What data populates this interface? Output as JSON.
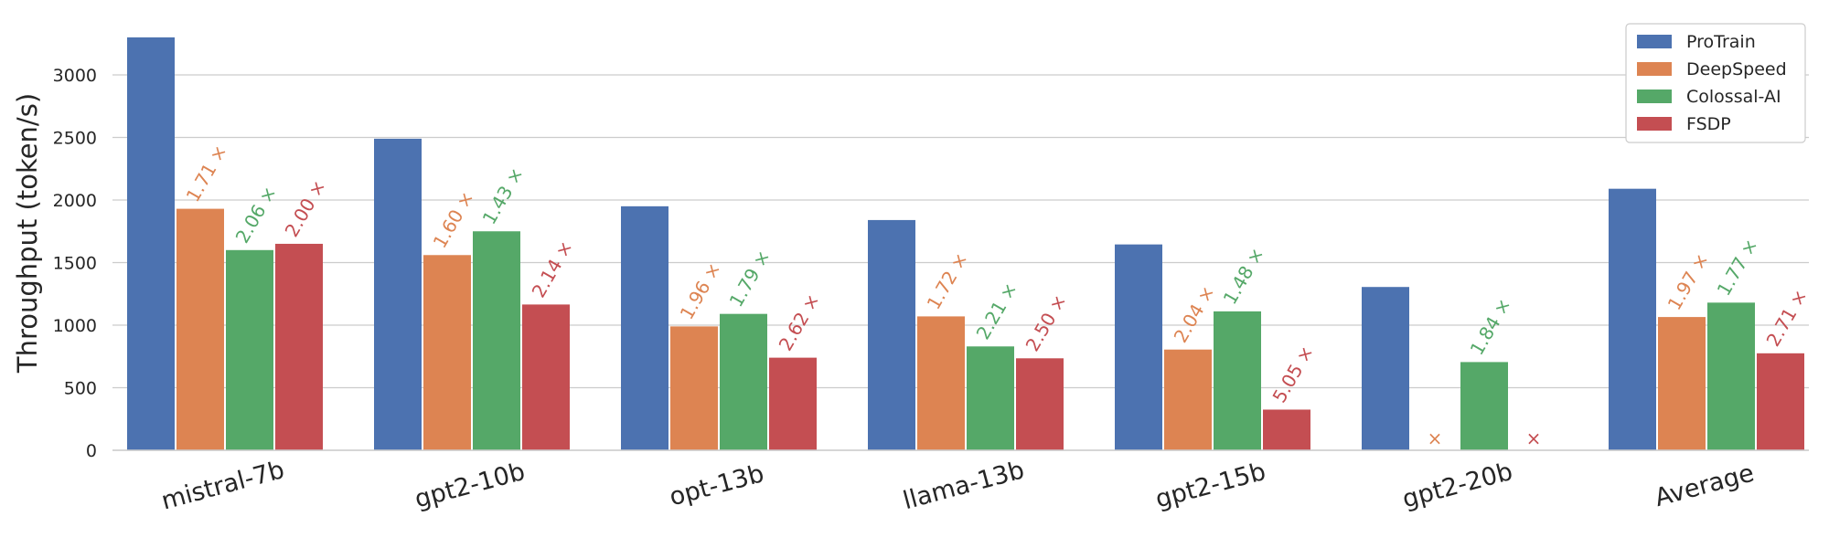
{
  "chart_data": {
    "type": "bar",
    "ylabel": "Throughput (token/s)",
    "xlabel": "",
    "ylim": [
      0,
      3350
    ],
    "yticks": [
      0,
      500,
      1000,
      1500,
      2000,
      2500,
      3000
    ],
    "grid": "horizontal",
    "legend_position": "top-right",
    "categories": [
      "mistral-7b",
      "gpt2-10b",
      "opt-13b",
      "llama-13b",
      "gpt2-15b",
      "gpt2-20b",
      "Average"
    ],
    "series": [
      {
        "name": "ProTrain",
        "color": "#4c72b0",
        "values": [
          3300,
          2490,
          1950,
          1840,
          1645,
          1305,
          2090
        ],
        "annotations": [
          "",
          "",
          "",
          "",
          "",
          "",
          ""
        ]
      },
      {
        "name": "DeepSpeed",
        "color": "#dd8452",
        "values": [
          1930,
          1560,
          990,
          1070,
          805,
          null,
          1065
        ],
        "annotations": [
          "1.71 ×",
          "1.60 ×",
          "1.96 ×",
          "1.72 ×",
          "2.04 ×",
          "×",
          "1.97 ×"
        ]
      },
      {
        "name": "Colossal-AI",
        "color": "#55a868",
        "values": [
          1600,
          1750,
          1090,
          830,
          1110,
          705,
          1180
        ],
        "annotations": [
          "2.06 ×",
          "1.43 ×",
          "1.79 ×",
          "2.21 ×",
          "1.48 ×",
          "1.84 ×",
          "1.77 ×"
        ]
      },
      {
        "name": "FSDP",
        "color": "#c44e52",
        "values": [
          1650,
          1165,
          740,
          735,
          325,
          null,
          775
        ],
        "annotations": [
          "2.00 ×",
          "2.14 ×",
          "2.62 ×",
          "2.50 ×",
          "5.05 ×",
          "×",
          "2.71 ×"
        ]
      }
    ]
  }
}
